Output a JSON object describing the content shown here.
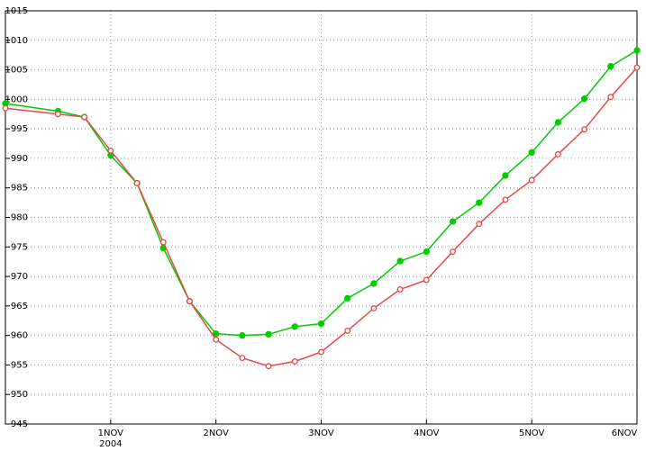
{
  "chart_data": {
    "type": "line",
    "x": [
      0,
      0.5,
      0.75,
      1,
      1.25,
      1.5,
      1.75,
      2,
      2.25,
      2.5,
      2.75,
      3,
      3.25,
      3.5,
      3.75,
      4,
      4.25,
      4.5,
      4.75,
      5,
      5.25,
      5.5,
      5.75,
      6
    ],
    "series": [
      {
        "color": "#00cc00",
        "marker": "filled",
        "values": [
          999.3,
          998,
          997,
          990.5,
          985.8,
          974.8,
          965.8,
          960.3,
          960,
          960.2,
          961.5,
          962,
          966.3,
          968.8,
          972.6,
          974.2,
          979.3,
          982.5,
          987.1,
          991,
          996.1,
          1000.1,
          1005.6,
          1008.3
        ]
      },
      {
        "color": "#e84848",
        "marker": "hollow",
        "values": [
          998.5,
          997.5,
          997,
          991.3,
          985.8,
          975.8,
          965.8,
          959.3,
          956.2,
          954.8,
          955.6,
          957.2,
          960.8,
          964.6,
          967.8,
          969.4,
          974.2,
          978.9,
          983,
          986.3,
          990.7,
          994.9,
          1000.4,
          1005.4
        ]
      }
    ],
    "xlim": [
      0,
      6
    ],
    "xticks": [
      {
        "value": 1,
        "label": "1NOV"
      },
      {
        "value": 2,
        "label": "2NOV"
      },
      {
        "value": 3,
        "label": "3NOV"
      },
      {
        "value": 4,
        "label": "4NOV"
      },
      {
        "value": 5,
        "label": "5NOV"
      },
      {
        "value": 6,
        "label": "6NOV"
      }
    ],
    "year_label": "2004",
    "ylim": [
      945,
      1015
    ],
    "yticks": [
      945,
      950,
      955,
      960,
      965,
      970,
      975,
      980,
      985,
      990,
      995,
      1000,
      1005,
      1010,
      1015
    ],
    "grid": true
  }
}
